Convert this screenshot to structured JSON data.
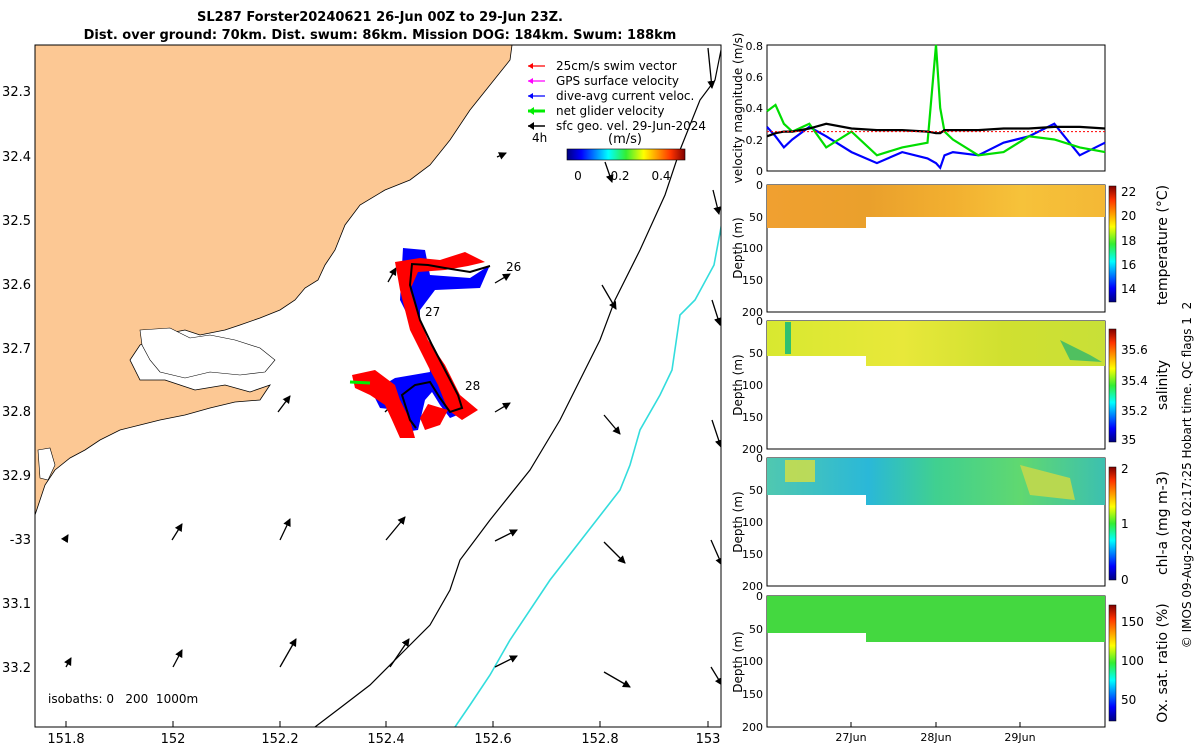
{
  "title": {
    "line1": "SL287 Forster20240621 26-Jun 00Z to 29-Jun 23Z.",
    "line2": "Dist. over ground: 70km. Dist. swum: 86km. Mission DOG: 184km. Swum: 188km"
  },
  "colors": {
    "land": "#fcc894",
    "swim": "#ff0000",
    "gps": "#ff00ff",
    "current": "#0000ff",
    "net": "#00ee00",
    "geo": "#000000",
    "isobath1000": "#33dddd"
  },
  "map": {
    "xaxis": {
      "ticks": [
        151.8,
        152,
        152.2,
        152.4,
        152.6,
        152.8,
        153
      ],
      "tick_labels": [
        "151.8",
        "152",
        "152.2",
        "152.4",
        "152.6",
        "152.8",
        "153"
      ],
      "range": [
        151.75,
        153.02
      ]
    },
    "yaxis": {
      "ticks": [
        -32.3,
        -32.4,
        -32.5,
        -32.6,
        -32.7,
        -32.8,
        -32.9,
        -33,
        -33.1,
        -33.2
      ],
      "tick_labels": [
        "32.3",
        "32.4",
        "32.5",
        "32.6",
        "32.7",
        "32.8",
        "32.9",
        "-33",
        "33.1",
        "33.2"
      ],
      "range": [
        -32.22,
        -33.29
      ]
    },
    "legend": {
      "position": "top-right",
      "items": [
        {
          "label": "25cm/s swim vector",
          "color": "#ff0000"
        },
        {
          "label": "GPS surface velocity",
          "color": "#ff00ff"
        },
        {
          "label": "dive-avg current veloc.",
          "color": "#0000ff"
        },
        {
          "label": "net glider velocity",
          "color": "#00ee00"
        },
        {
          "label": "sfc geo. vel. 29-Jun-2024",
          "color": "#000000"
        }
      ],
      "scale_label": "4h",
      "colorbar_unit": "(m/s)",
      "colorbar_ticks": [
        "0",
        "0.2",
        "0.4"
      ]
    },
    "day_labels": [
      "26",
      "27",
      "28"
    ],
    "isobath_label": "isobaths: 0   200  1000m"
  },
  "chart_data": [
    {
      "type": "line",
      "title": "",
      "ylabel": "velocity magnitude (m/s)",
      "ylim": [
        0,
        0.8
      ],
      "yticks": [
        "0",
        "0.2",
        "0.4",
        "0.6",
        "0.8"
      ],
      "x_days": [
        0,
        0.1,
        0.2,
        0.3,
        0.5,
        0.7,
        1.0,
        1.3,
        1.6,
        1.9,
        2.0,
        2.05,
        2.1,
        2.2,
        2.5,
        2.8,
        3.1,
        3.4,
        3.7,
        4.0
      ],
      "series": [
        {
          "name": "dive-avg current veloc.",
          "color": "#0000ff",
          "values": [
            0.28,
            0.22,
            0.15,
            0.2,
            0.28,
            0.22,
            0.12,
            0.05,
            0.12,
            0.08,
            0.05,
            0.02,
            0.1,
            0.12,
            0.1,
            0.18,
            0.22,
            0.3,
            0.1,
            0.18
          ]
        },
        {
          "name": "net glider velocity",
          "color": "#00dd00",
          "values": [
            0.38,
            0.42,
            0.3,
            0.25,
            0.3,
            0.15,
            0.25,
            0.1,
            0.15,
            0.18,
            0.8,
            0.4,
            0.25,
            0.2,
            0.1,
            0.12,
            0.22,
            0.2,
            0.15,
            0.12
          ]
        },
        {
          "name": "sfc geo. vel.",
          "color": "#000000",
          "values": [
            0.22,
            0.24,
            0.25,
            0.25,
            0.27,
            0.3,
            0.27,
            0.26,
            0.26,
            0.25,
            0.24,
            0.24,
            0.26,
            0.26,
            0.26,
            0.27,
            0.27,
            0.28,
            0.28,
            0.27
          ]
        },
        {
          "name": "25cm/s swim vector",
          "color": "#ff0000",
          "values": [
            0.25,
            0.25,
            0.25,
            0.25,
            0.25,
            0.25,
            0.25,
            0.25,
            0.25,
            0.25,
            0.25,
            0.25,
            0.25,
            0.25,
            0.25,
            0.25,
            0.25,
            0.25,
            0.25,
            0.25
          ]
        }
      ]
    },
    {
      "type": "heatmap",
      "variable": "temperature (°C)",
      "ylabel": "Depth (m)",
      "yticks": [
        "0",
        "50",
        "100",
        "150",
        "200"
      ],
      "colorbar_ticks": [
        "14",
        "16",
        "18",
        "20",
        "22"
      ],
      "colorbar_range": [
        13,
        22
      ],
      "typical_value": 20.5
    },
    {
      "type": "heatmap",
      "variable": "salinity",
      "ylabel": "Depth (m)",
      "yticks": [
        "0",
        "50",
        "100",
        "150",
        "200"
      ],
      "colorbar_ticks": [
        "35",
        "35.2",
        "35.4",
        "35.6"
      ],
      "colorbar_range": [
        34.95,
        35.7
      ],
      "typical_value": 35.5
    },
    {
      "type": "heatmap",
      "variable": "chl-a (mg m-3)",
      "ylabel": "Depth (m)",
      "yticks": [
        "0",
        "50",
        "100",
        "150",
        "200"
      ],
      "colorbar_ticks": [
        "0",
        "1",
        "2"
      ],
      "colorbar_range": [
        0,
        2
      ],
      "typical_value": 0.7
    },
    {
      "type": "heatmap",
      "variable": "Ox. sat. ratio (%)",
      "ylabel": "Depth (m)",
      "yticks": [
        "0",
        "50",
        "100",
        "150",
        "200"
      ],
      "colorbar_ticks": [
        "50",
        "100",
        "150"
      ],
      "colorbar_range": [
        25,
        175
      ],
      "typical_value": 110
    }
  ],
  "time_axis": {
    "tick_labels": [
      "27Jun",
      "28Jun",
      "29Jun"
    ]
  },
  "right_note": "© IMOS 09-Aug-2024 02:17:25 Hobart time. QC flags 1  2"
}
